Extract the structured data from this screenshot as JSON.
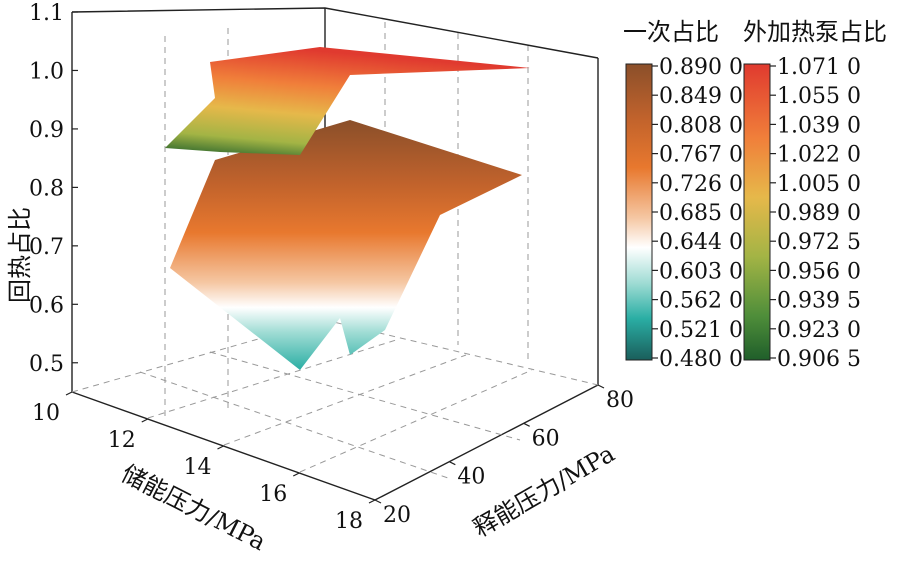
{
  "chart_data": {
    "type": "surface3d",
    "zlabel": "回热占比",
    "xlabel": "储能压力/MPa",
    "ylabel": "释能压力/MPa",
    "xticks": [
      "10",
      "12",
      "14",
      "16",
      "18"
    ],
    "yticks": [
      "20",
      "40",
      "60",
      "80"
    ],
    "zticks": [
      "0.5",
      "0.6",
      "0.7",
      "0.8",
      "0.9",
      "1.0",
      "1.1"
    ],
    "xlim": [
      10,
      18
    ],
    "ylim": [
      20,
      80
    ],
    "zlim": [
      0.45,
      1.1
    ],
    "grid": true,
    "surfaces": [
      {
        "name": "一次占比",
        "colorbar_ticks": [
          "0.890 0",
          "0.849 0",
          "0.808 0",
          "0.767 0",
          "0.726 0",
          "0.685 0",
          "0.644 0",
          "0.603 0",
          "0.562 0",
          "0.521 0",
          "0.480 0"
        ],
        "colorscale": [
          "#8a4f2a",
          "#c0622c",
          "#e8782e",
          "#f2b68d",
          "#ffffff",
          "#8fd8cf",
          "#2aaea4",
          "#1f7e78",
          "#1a5e5b"
        ],
        "corner_values": [
          {
            "x": 10,
            "y": 20,
            "z": 0.7
          },
          {
            "x": 10,
            "y": 80,
            "z": 0.9
          },
          {
            "x": 18,
            "y": 80,
            "z": 0.9
          },
          {
            "x": 18,
            "y": 20,
            "z": 0.54
          }
        ]
      },
      {
        "name": "外加热泵占比",
        "colorbar_ticks": [
          "1.071 0",
          "1.055 0",
          "1.039 0",
          "1.022 0",
          "1.005 0",
          "0.989 0",
          "0.972 5",
          "0.956 0",
          "0.939 5",
          "0.923 0",
          "0.906 5"
        ],
        "colorscale": [
          "#e03a2f",
          "#f07f3a",
          "#e6b84a",
          "#a3b445",
          "#4f8e3a",
          "#1f5e2a"
        ],
        "corner_values": [
          {
            "x": 10,
            "y": 20,
            "z": 0.91
          },
          {
            "x": 10,
            "y": 80,
            "z": 1.07
          },
          {
            "x": 18,
            "y": 80,
            "z": 1.07
          },
          {
            "x": 18,
            "y": 20,
            "z": 1.05
          }
        ]
      }
    ]
  }
}
